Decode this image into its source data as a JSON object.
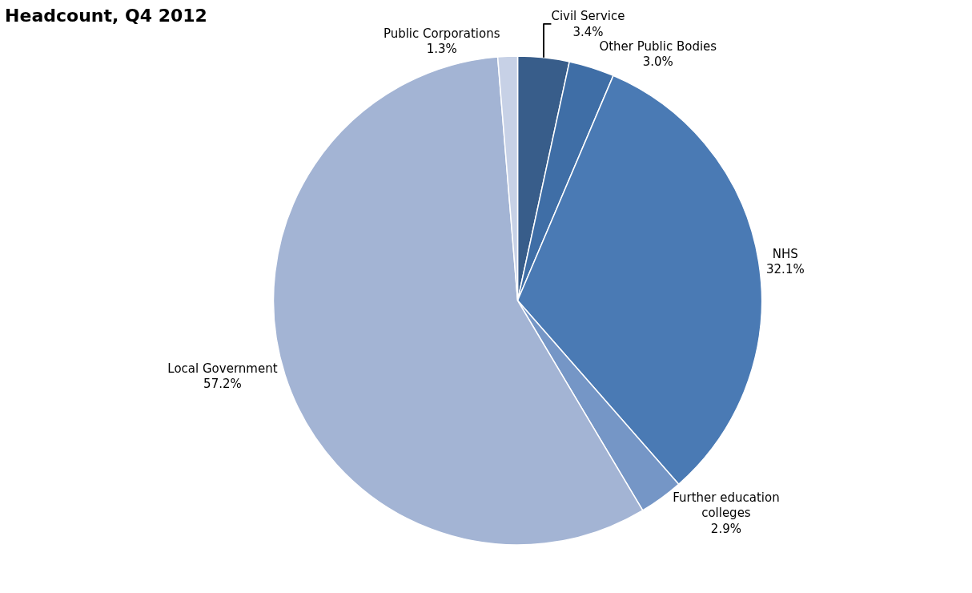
{
  "chart_data": {
    "type": "pie",
    "title": "Headcount, Q4 2012",
    "categories": [
      "Civil Service",
      "Other Public Bodies",
      "NHS",
      "Further education colleges",
      "Local Government",
      "Public Corporations"
    ],
    "values": [
      3.4,
      3.0,
      32.1,
      2.9,
      57.2,
      1.3
    ],
    "value_labels": [
      "3.4%",
      "3.0%",
      "32.1%",
      "2.9%",
      "57.2%",
      "1.3%"
    ],
    "colors": [
      "#385d8a",
      "#3f6ea6",
      "#4a7ab4",
      "#7596c6",
      "#a3b4d4",
      "#c7d1e6"
    ],
    "legend": false
  }
}
